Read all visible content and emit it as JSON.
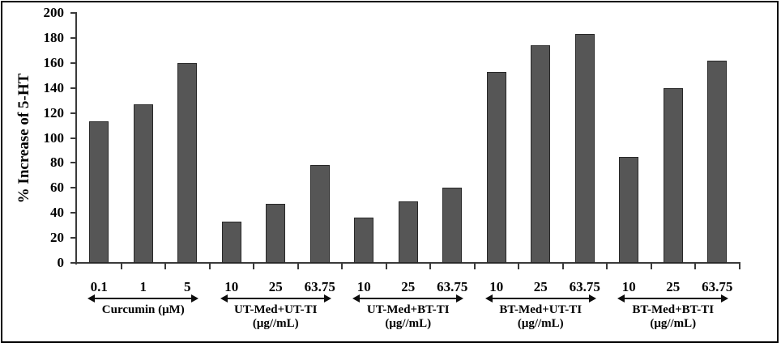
{
  "figure": {
    "kind": "framed-bar-chart",
    "background": "#ffffff",
    "frame_color": "#000000"
  },
  "chart_data": {
    "type": "bar",
    "title": "",
    "xlabel": "",
    "ylabel": "% Increase of 5-HT",
    "ylim": [
      0,
      200
    ],
    "ytick_step": 20,
    "ytick_labels": [
      "0",
      "20",
      "40",
      "60",
      "80",
      "100",
      "120",
      "140",
      "160",
      "180",
      "200"
    ],
    "grid": false,
    "legend_position": "none",
    "bar_color": "#565656",
    "bar_border_color": "#282828",
    "axis_color": "#3a3a3a",
    "groups": [
      {
        "name": "curcumin",
        "label_lines": [
          "Curcumin (μM)"
        ],
        "categories": [
          "0.1",
          "1",
          "5"
        ],
        "values": [
          113,
          127,
          160
        ]
      },
      {
        "name": "ut-med-ut-ti",
        "label_lines": [
          "UT-Med+UT-TI",
          "(μg//mL)"
        ],
        "categories": [
          "10",
          "25",
          "63.75"
        ],
        "values": [
          33,
          47,
          78
        ]
      },
      {
        "name": "ut-med-bt-ti",
        "label_lines": [
          "UT-Med+BT-TI",
          "(μg//mL)"
        ],
        "categories": [
          "10",
          "25",
          "63.75"
        ],
        "values": [
          36,
          49,
          60
        ]
      },
      {
        "name": "bt-med-ut-ti",
        "label_lines": [
          "BT-Med+UT-TI",
          "(μg//mL)"
        ],
        "categories": [
          "10",
          "25",
          "63.75"
        ],
        "values": [
          153,
          174,
          183
        ]
      },
      {
        "name": "bt-med-bt-ti",
        "label_lines": [
          "BT-Med+BT-TI",
          "(μg//mL)"
        ],
        "categories": [
          "10",
          "25",
          "63.75"
        ],
        "values": [
          85,
          140,
          162
        ]
      }
    ]
  }
}
